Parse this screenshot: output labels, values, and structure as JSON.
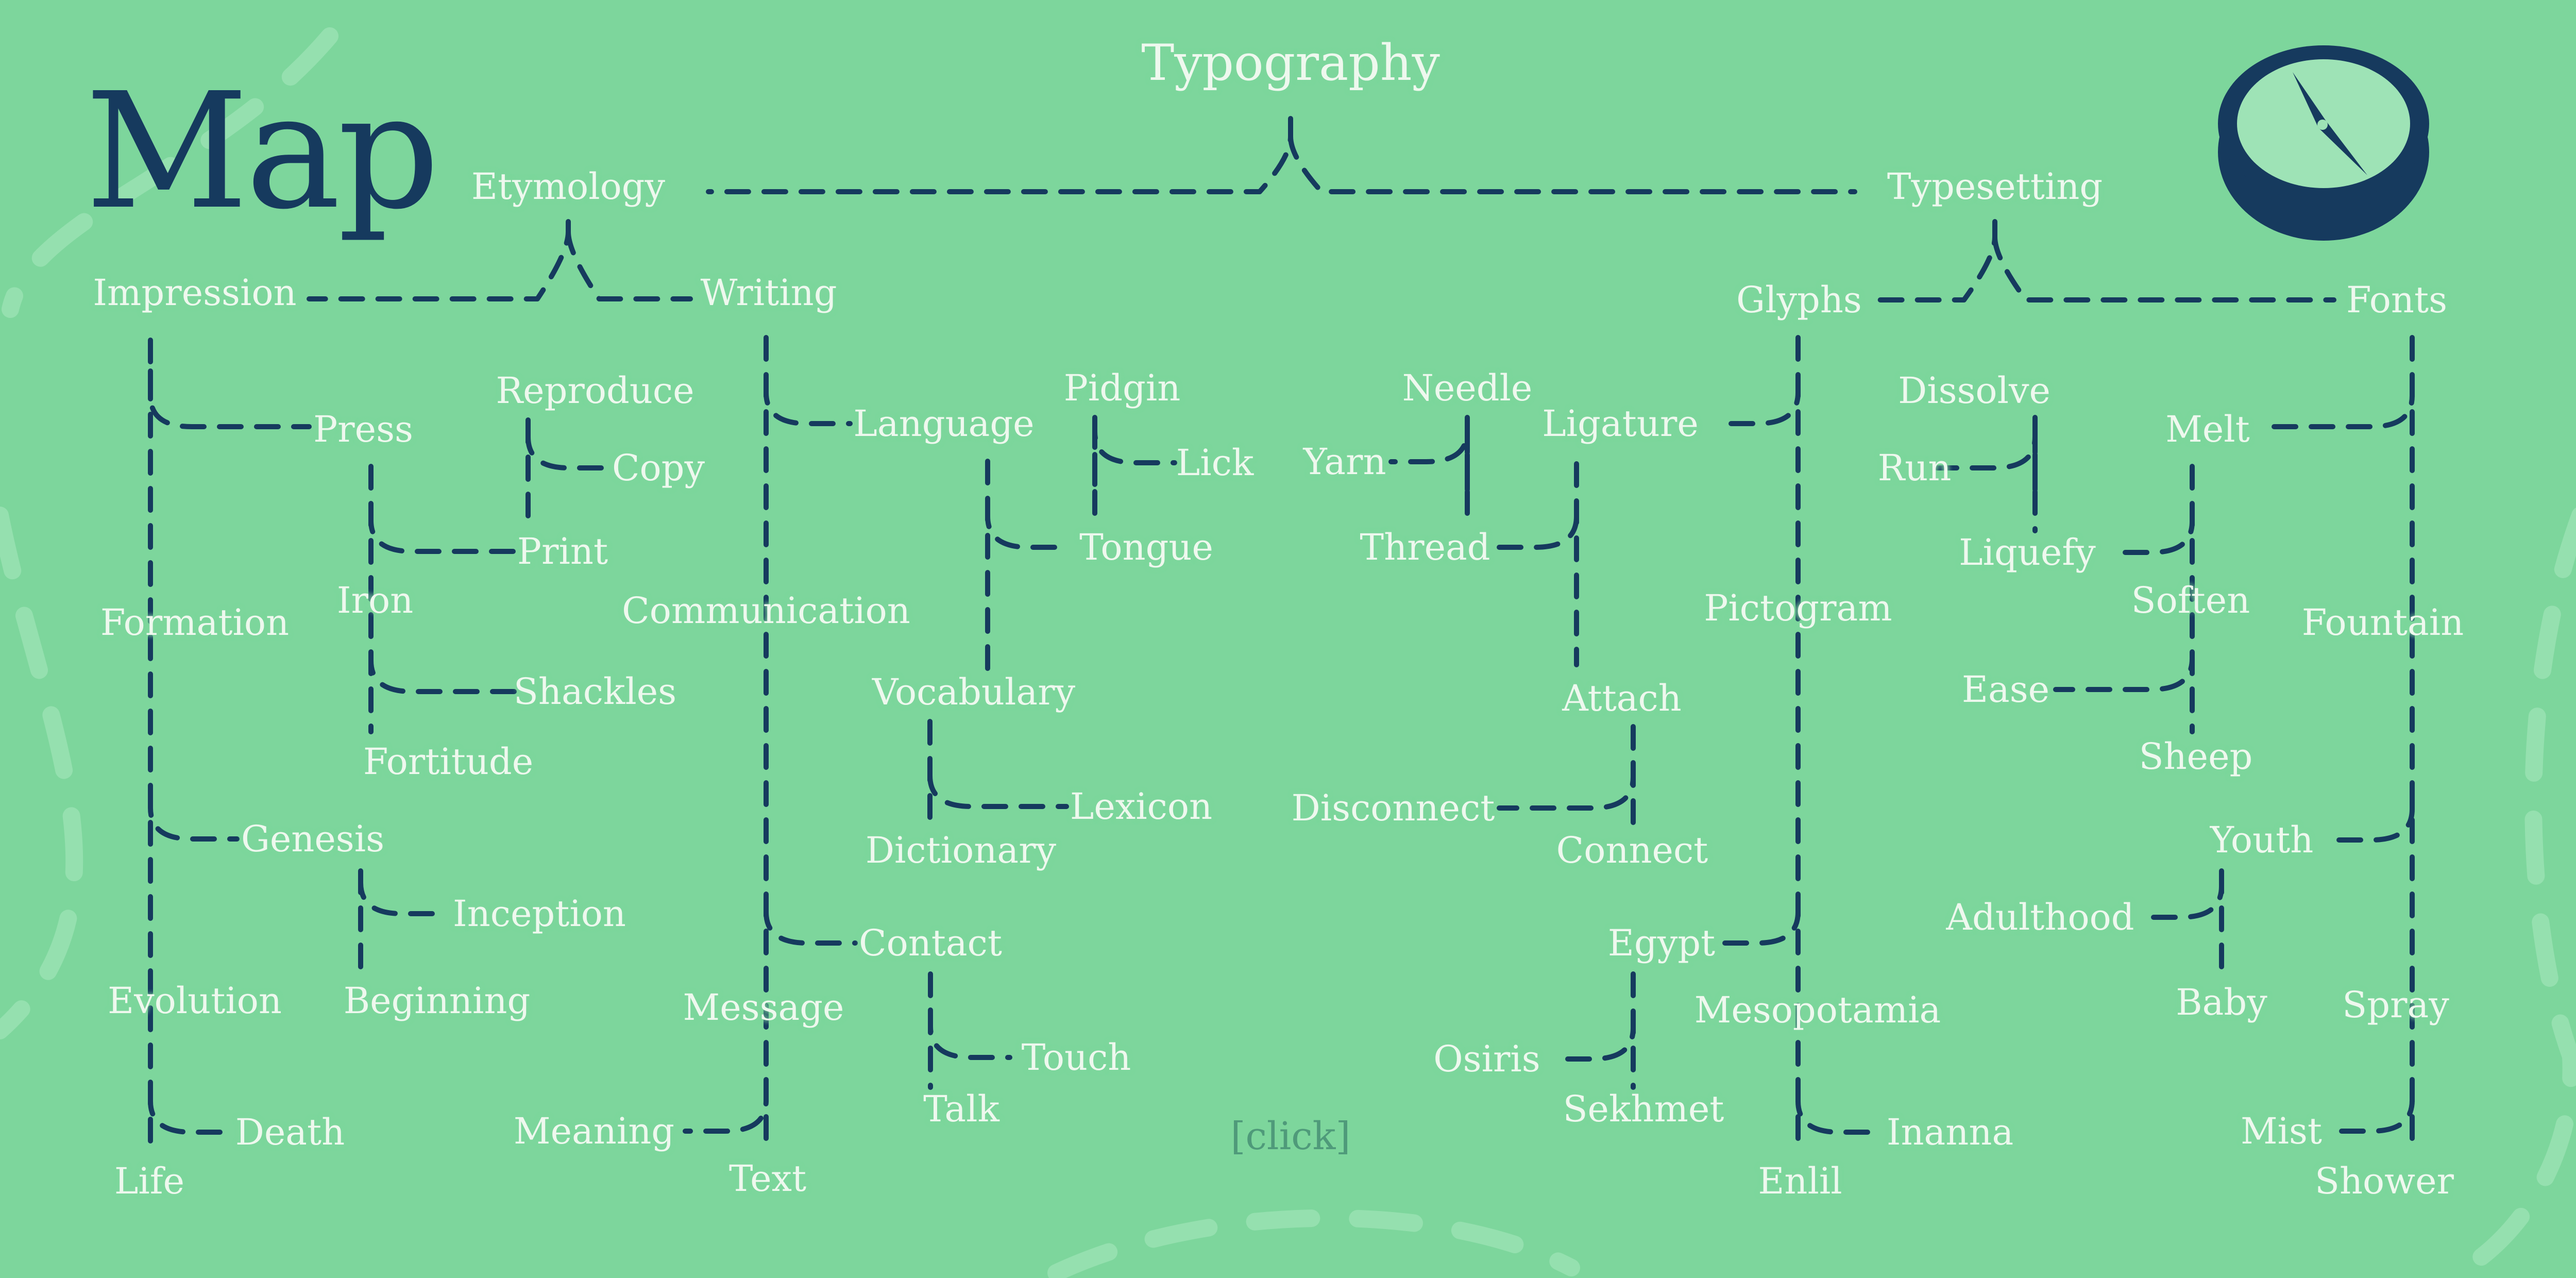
{
  "title": "Map",
  "footer": {
    "click_label": "[click]"
  },
  "colors": {
    "background": "#7dd69c",
    "lines": "#163a5e",
    "text": "#eef8ee",
    "title": "#163a5e",
    "compass_face": "#9ee3b6"
  },
  "icons": {
    "compass": "compass-icon"
  },
  "tree": {
    "Typography": {
      "Etymology": {
        "Impression": {
          "Press": {
            "Iron": {
              "Shackles": {},
              "Fortitude": {}
            },
            "Print": {
              "Reproduce": {},
              "Copy": {}
            }
          },
          "Formation": {
            "Genesis": {
              "Inception": {},
              "Beginning": {}
            },
            "Evolution": {
              "Death": {},
              "Life": {}
            }
          }
        },
        "Writing": {
          "Language": {
            "Vocabulary": {
              "Lexicon": {},
              "Dictionary": {}
            },
            "Tongue": {
              "Pidgin": {},
              "Lick": {}
            }
          },
          "Communication": {
            "Contact": {
              "Touch": {},
              "Talk": {}
            },
            "Message": {
              "Meaning": {},
              "Text": {}
            }
          }
        }
      },
      "Typesetting": {
        "Glyphs": {
          "Ligature": {
            "Thread": {
              "Needle": {},
              "Yarn": {}
            },
            "Attach": {
              "Disconnect": {},
              "Connect": {}
            }
          },
          "Pictogram": {
            "Egypt": {
              "Osiris": {},
              "Sekhmet": {}
            },
            "Mesopotamia": {
              "Inanna": {},
              "Enlil": {}
            }
          }
        },
        "Fonts": {
          "Melt": {
            "Liquefy": {
              "Dissolve": {},
              "Run": {}
            },
            "Soften": {
              "Ease": {},
              "Sheep": {}
            }
          },
          "Fountain": {
            "Youth": {
              "Adulthood": {},
              "Baby": {}
            },
            "Spray": {
              "Mist": {},
              "Shower": {}
            }
          }
        }
      }
    }
  }
}
